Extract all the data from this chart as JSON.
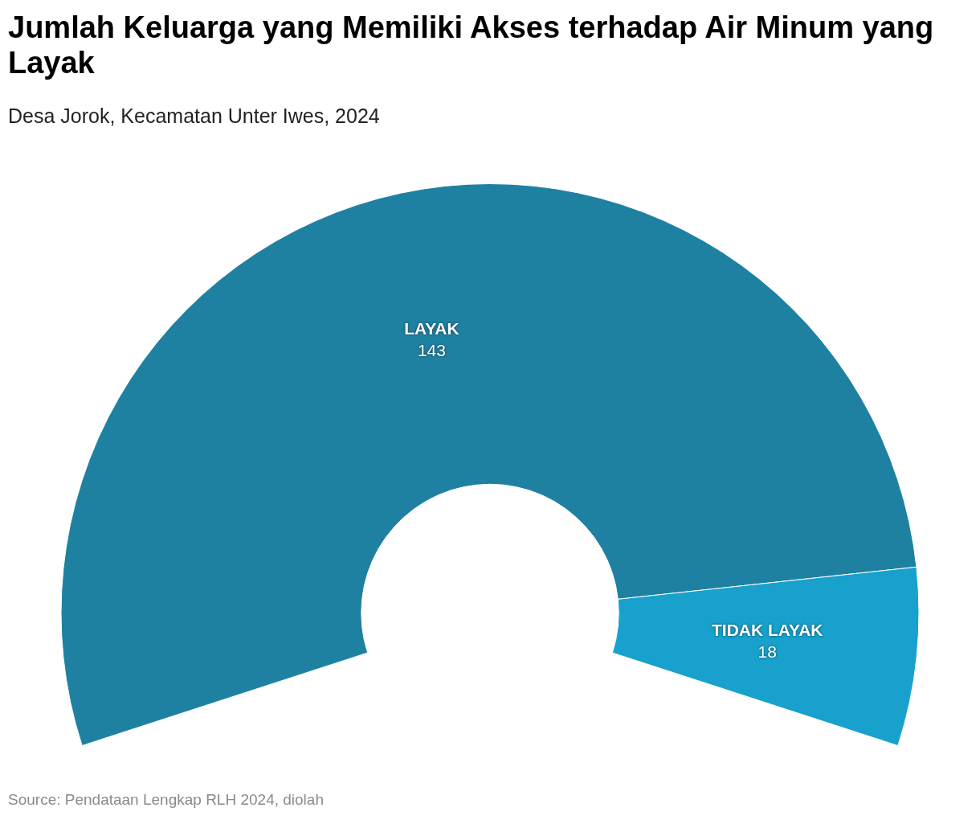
{
  "chart_data": {
    "type": "donut",
    "title": "Jumlah Keluarga yang Memiliki Akses terhadap Air Minum yang Layak",
    "subtitle": "Desa Jorok, Kecamatan Unter Iwes, 2024",
    "categories": [
      "LAYAK",
      "TIDAK LAYAK"
    ],
    "values": [
      143,
      18
    ],
    "colors": [
      "#1f81a1",
      "#18a1cd"
    ],
    "data_labels": true,
    "legend": false,
    "annotations": [
      "Source: Pendataan Lengkap RLH 2024, diolah"
    ]
  }
}
